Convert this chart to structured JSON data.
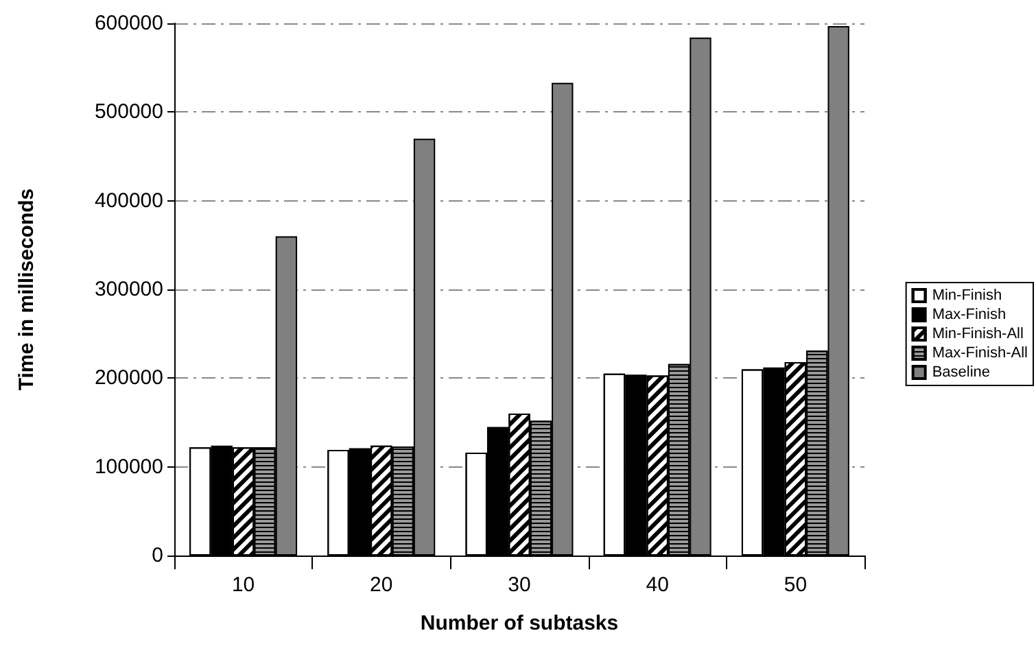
{
  "chart_data": {
    "type": "bar",
    "xlabel": "Number of subtasks",
    "ylabel": "Time in milliseconds",
    "categories": [
      "10",
      "20",
      "30",
      "40",
      "50"
    ],
    "series": [
      {
        "name": "Min-Finish",
        "color": "#ffffff",
        "values": [
          122000,
          119000,
          116000,
          205000,
          210000
        ]
      },
      {
        "name": "Max-Finish",
        "color": "#000000",
        "values": [
          124000,
          121000,
          145000,
          204000,
          212000
        ]
      },
      {
        "name": "Min-Finish-All",
        "color": "#ffffff",
        "values": [
          122000,
          124000,
          160000,
          203000,
          218000
        ]
      },
      {
        "name": "Max-Finish-All",
        "color": "#999999",
        "values": [
          122000,
          123000,
          152000,
          216000,
          231000
        ]
      },
      {
        "name": "Baseline",
        "color": "#808080",
        "values": [
          360000,
          470000,
          533000,
          584000,
          597000
        ]
      }
    ],
    "ylim": [
      0,
      600000
    ],
    "yticks": [
      0,
      100000,
      200000,
      300000,
      400000,
      500000,
      600000
    ],
    "grid": "y",
    "legend": "right"
  }
}
